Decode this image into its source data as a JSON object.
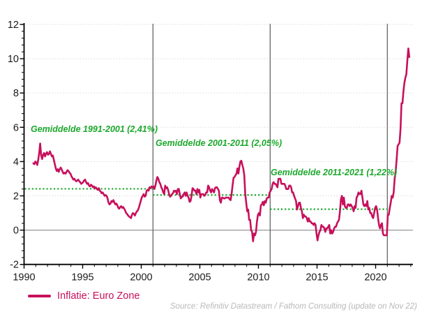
{
  "chart_data": {
    "type": "line",
    "title": "",
    "xlabel": "",
    "ylabel": "",
    "x_axis": {
      "range": [
        1990,
        2023.3
      ],
      "tick_years": [
        1990,
        1995,
        2000,
        2005,
        2010,
        2015,
        2020
      ],
      "tick_labels": [
        "1990",
        "1995",
        "2000",
        "2005",
        "2010",
        "2015",
        "2020"
      ],
      "minor_step_years": 1
    },
    "y_axis": {
      "range": [
        -2,
        12
      ],
      "tick_values": [
        -2,
        0,
        2,
        4,
        6,
        8,
        10,
        12
      ],
      "tick_labels": [
        "-2",
        "0",
        "2",
        "4",
        "6",
        "8",
        "10",
        "12"
      ],
      "minor_step": 0.4
    },
    "grid": {
      "dotted_values": [
        2,
        4,
        6,
        8,
        10,
        12
      ],
      "zero_line_value": 0
    },
    "period_lines": {
      "years": [
        2001,
        2011,
        2021
      ]
    },
    "avg_lines": [
      {
        "label": "Gemiddelde 1991-2001 (2,41%)",
        "value": 2.41,
        "from_year": 1990.05,
        "to_year": 2001
      },
      {
        "label": "Gemiddelde 2001-2011 (2,05%)",
        "value": 2.05,
        "from_year": 2001,
        "to_year": 2011
      },
      {
        "label": "Gemiddelde 2011-2021 (1,22%)",
        "value": 1.22,
        "from_year": 2011,
        "to_year": 2021
      }
    ],
    "series": [
      {
        "name": "Inflatie: Euro Zone",
        "monthly": {
          "1990": [
            3.9,
            3.85,
            4.0
          ],
          "1991": [
            3.95,
            3.8,
            4.1,
            4.5,
            5.05,
            4.35,
            4.15,
            4.4,
            4.5,
            4.3,
            4.45,
            4.55
          ],
          "1992": [
            4.4,
            4.45,
            4.6,
            4.45,
            4.3,
            4.35,
            4.1,
            3.85,
            3.6,
            3.45,
            3.55,
            3.4
          ],
          "1993": [
            3.55,
            3.65,
            3.55,
            3.4,
            3.3,
            3.35,
            3.3,
            3.4,
            3.5,
            3.45,
            3.35,
            3.3
          ],
          "1994": [
            3.15,
            3.05,
            2.95,
            3.0,
            2.9,
            2.85,
            2.9,
            2.95,
            2.85,
            2.8,
            2.7,
            2.75
          ],
          "1995": [
            2.8,
            2.9,
            2.95,
            2.8,
            2.7,
            2.75,
            2.6,
            2.55,
            2.65,
            2.6,
            2.5,
            2.55
          ],
          "1996": [
            2.45,
            2.5,
            2.4,
            2.35,
            2.45,
            2.3,
            2.25,
            2.15,
            2.2,
            2.1,
            2.0,
            2.05
          ],
          "1997": [
            2.0,
            1.85,
            1.6,
            1.5,
            1.55,
            1.7,
            1.65,
            1.75,
            1.6,
            1.5,
            1.55,
            1.45
          ],
          "1998": [
            1.3,
            1.25,
            1.35,
            1.4,
            1.3,
            1.35,
            1.25,
            1.15,
            1.0,
            0.95,
            0.85,
            0.8
          ],
          "1999": [
            0.75,
            0.7,
            0.9,
            1.0,
            0.95,
            0.85,
            1.0,
            1.1,
            1.15,
            1.3,
            1.5,
            1.7
          ],
          "2000": [
            1.9,
            2.0,
            2.1,
            1.95,
            2.0,
            2.3,
            2.35,
            2.3,
            2.5,
            2.45,
            2.55,
            2.5
          ],
          "2001": [
            2.55,
            2.4,
            2.6,
            2.9,
            3.1,
            3.0,
            2.8,
            2.7,
            2.5,
            2.4,
            2.2,
            2.1
          ],
          "2002": [
            2.6,
            2.45,
            2.5,
            2.35,
            2.1,
            1.95,
            2.0,
            2.1,
            2.15,
            2.3,
            2.25,
            2.3
          ],
          "2003": [
            2.1,
            2.4,
            2.4,
            2.1,
            1.85,
            1.95,
            1.95,
            2.1,
            2.2,
            2.0,
            2.2,
            2.0
          ],
          "2004": [
            1.9,
            1.65,
            1.7,
            2.0,
            2.45,
            2.4,
            2.3,
            2.3,
            2.1,
            2.4,
            2.2,
            2.35
          ],
          "2005": [
            1.9,
            2.1,
            2.1,
            2.1,
            2.0,
            2.05,
            2.2,
            2.2,
            2.6,
            2.5,
            2.3,
            2.2
          ],
          "2006": [
            2.4,
            2.3,
            2.2,
            2.45,
            2.5,
            2.5,
            2.4,
            2.3,
            1.75,
            1.6,
            1.9,
            1.9
          ],
          "2007": [
            1.85,
            1.85,
            1.9,
            1.9,
            1.9,
            1.9,
            1.8,
            1.75,
            2.1,
            2.6,
            3.05,
            3.1
          ],
          "2008": [
            3.2,
            3.3,
            3.6,
            3.3,
            3.7,
            4.0,
            4.05,
            3.8,
            3.6,
            3.2,
            2.1,
            1.6
          ],
          "2009": [
            1.1,
            1.2,
            0.6,
            0.6,
            0.0,
            -0.1,
            -0.65,
            -0.2,
            -0.3,
            -0.1,
            0.5,
            0.9
          ],
          "2010": [
            1.0,
            0.85,
            1.45,
            1.5,
            1.65,
            1.45,
            1.7,
            1.6,
            1.85,
            1.9,
            1.9,
            2.2
          ],
          "2011": [
            2.3,
            2.4,
            2.7,
            2.8,
            2.7,
            2.7,
            2.6,
            2.5,
            3.0,
            3.0,
            3.0,
            2.7
          ],
          "2012": [
            2.7,
            2.7,
            2.7,
            2.6,
            2.4,
            2.4,
            2.4,
            2.6,
            2.6,
            2.5,
            2.2,
            2.2
          ],
          "2013": [
            2.0,
            1.85,
            1.7,
            1.2,
            1.4,
            1.6,
            1.6,
            1.3,
            1.1,
            0.7,
            0.9,
            0.8
          ],
          "2014": [
            0.8,
            0.7,
            0.5,
            0.7,
            0.5,
            0.5,
            0.4,
            0.4,
            0.3,
            0.4,
            0.3,
            -0.2
          ],
          "2015": [
            -0.6,
            -0.3,
            -0.1,
            0.0,
            0.3,
            0.2,
            0.2,
            0.1,
            -0.1,
            0.1,
            0.1,
            0.2
          ],
          "2016": [
            0.3,
            -0.2,
            0.0,
            -0.2,
            -0.1,
            0.1,
            0.2,
            0.2,
            0.4,
            0.5,
            0.6,
            1.1
          ],
          "2017": [
            1.8,
            2.0,
            1.5,
            1.9,
            1.4,
            1.3,
            1.3,
            1.5,
            1.5,
            1.4,
            1.5,
            1.4
          ],
          "2018": [
            1.3,
            1.1,
            1.4,
            1.3,
            1.9,
            2.0,
            2.2,
            2.1,
            2.1,
            2.3,
            1.9,
            1.5
          ],
          "2019": [
            1.4,
            1.5,
            1.4,
            1.7,
            1.2,
            1.3,
            1.0,
            1.0,
            0.8,
            0.7,
            1.0,
            1.3
          ],
          "2020": [
            1.4,
            1.2,
            0.7,
            0.3,
            0.1,
            0.3,
            0.4,
            -0.2,
            -0.3,
            -0.3,
            -0.3,
            -0.3
          ],
          "2021": [
            0.9,
            0.9,
            1.3,
            1.6,
            2.0,
            1.9,
            2.2,
            3.0,
            3.4,
            4.1,
            4.9,
            5.0
          ],
          "2022": [
            5.1,
            5.9,
            7.4,
            7.4,
            8.1,
            8.6,
            8.9,
            9.1,
            9.9,
            10.6,
            10.1
          ]
        }
      }
    ],
    "colors": {
      "line": "#C7105C",
      "average": "#1CA82C",
      "axis": "#000000",
      "tick_label": "#1a1a1a",
      "grid": "#DADADA",
      "zero_line": "#808080",
      "period_line": "#595959",
      "source_text": "#b8b8b8"
    },
    "legend_position": "bottom-left"
  },
  "legend": {
    "label": "Inflatie: Euro Zone"
  },
  "source_note": "Source: Refinitiv Datastream / Fathom Consulting (update on Nov 22)"
}
